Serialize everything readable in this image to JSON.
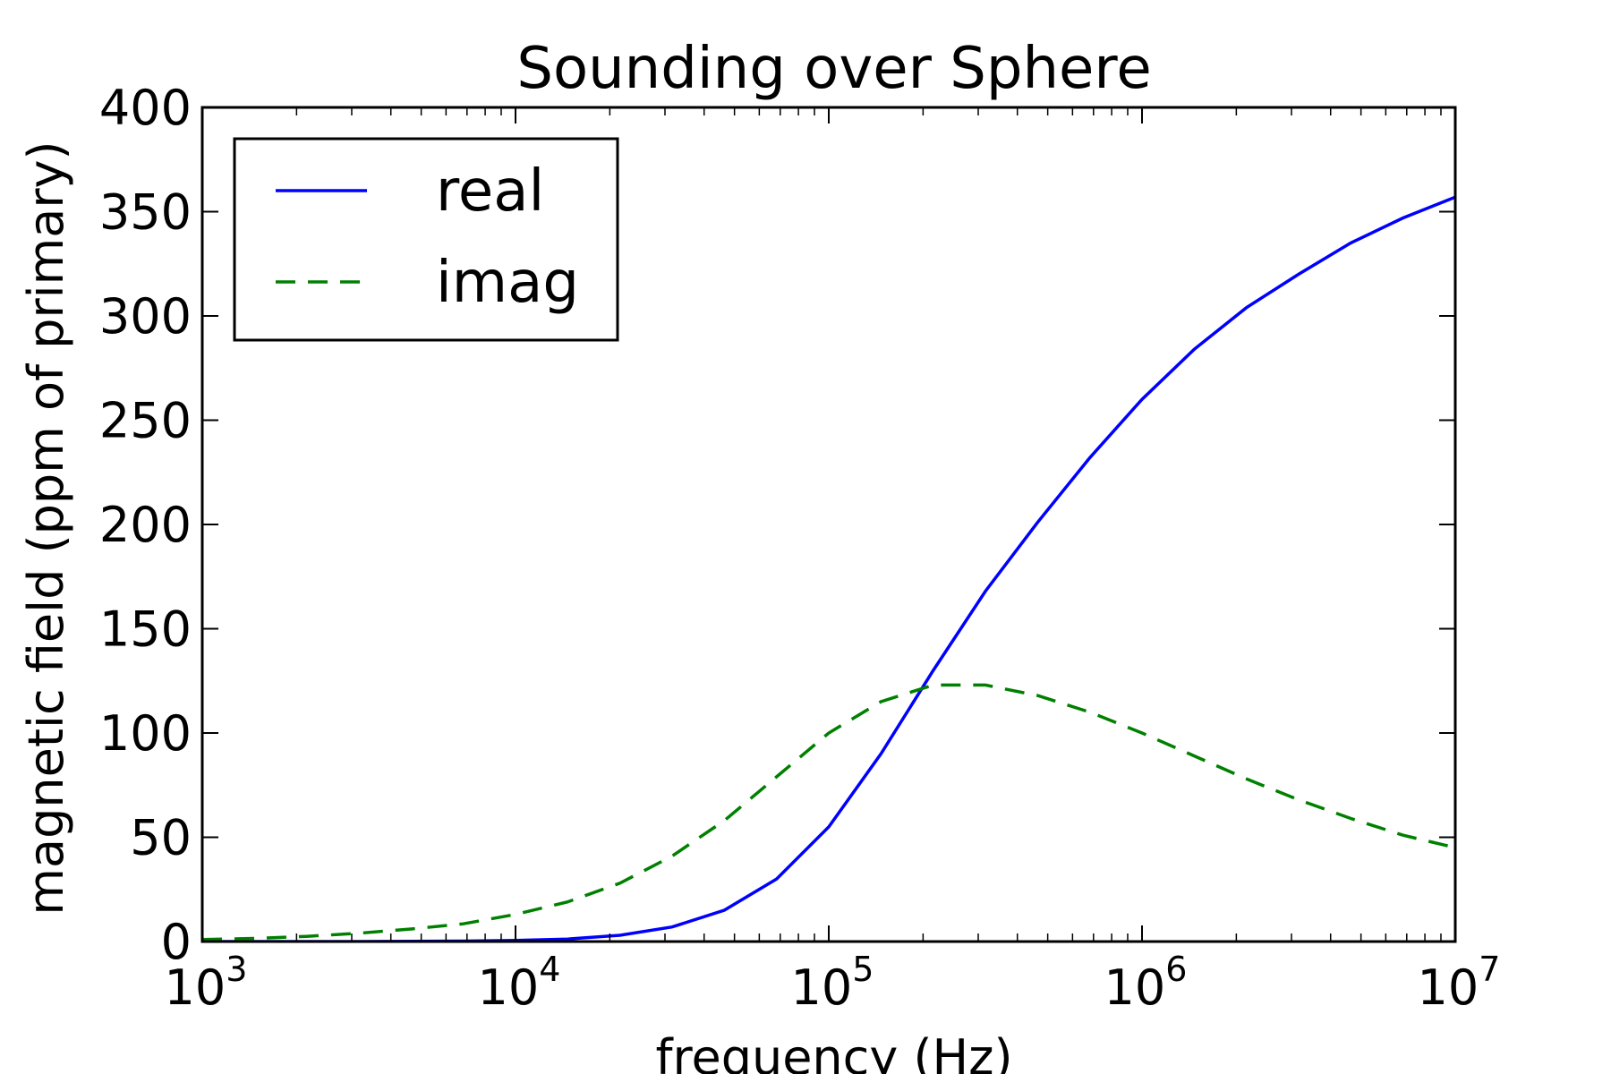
{
  "chart_data": {
    "type": "line",
    "title": "Sounding over Sphere",
    "xlabel": "frequency (Hz)",
    "ylabel": "magnetic field (ppm of primary)",
    "xscale": "log",
    "xlim": [
      1000,
      10000000
    ],
    "ylim": [
      0,
      400
    ],
    "xticks": [
      {
        "base": "10",
        "exp": "3",
        "value": 1000
      },
      {
        "base": "10",
        "exp": "4",
        "value": 10000
      },
      {
        "base": "10",
        "exp": "5",
        "value": 100000
      },
      {
        "base": "10",
        "exp": "6",
        "value": 1000000
      },
      {
        "base": "10",
        "exp": "7",
        "value": 10000000
      }
    ],
    "yticks": [
      {
        "label": "0",
        "value": 0
      },
      {
        "label": "50",
        "value": 50
      },
      {
        "label": "100",
        "value": 100
      },
      {
        "label": "150",
        "value": 150
      },
      {
        "label": "200",
        "value": 200
      },
      {
        "label": "250",
        "value": 250
      },
      {
        "label": "300",
        "value": 300
      },
      {
        "label": "350",
        "value": 350
      },
      {
        "label": "400",
        "value": 400
      }
    ],
    "grid": false,
    "legend_position": "top-left",
    "series": [
      {
        "name": "real",
        "color": "#0000ff",
        "style": "solid",
        "x": [
          1000,
          1468,
          2154,
          3162,
          4642,
          6813,
          10000,
          14678,
          21544,
          31623,
          46416,
          68129,
          100000,
          146780,
          215440,
          316230,
          464160,
          681290,
          1000000,
          1467800,
          2154400,
          3162300,
          4641600,
          6812900,
          10000000
        ],
        "y": [
          0,
          0,
          0,
          0,
          0.1,
          0.2,
          0.5,
          1.2,
          3,
          7,
          15,
          30,
          55,
          90,
          130,
          168,
          201,
          232,
          260,
          284,
          304,
          320,
          335,
          347,
          357
        ]
      },
      {
        "name": "imag",
        "color": "#008000",
        "style": "dashed",
        "x": [
          1000,
          1468,
          2154,
          3162,
          4642,
          6813,
          10000,
          14678,
          21544,
          31623,
          46416,
          68129,
          100000,
          146780,
          215440,
          316230,
          464160,
          681290,
          1000000,
          1467800,
          2154400,
          3162300,
          4641600,
          6812900,
          10000000
        ],
        "y": [
          1,
          1.5,
          2.5,
          4,
          6,
          8.5,
          13,
          19,
          28,
          41,
          58,
          79,
          100,
          115,
          123,
          123,
          118,
          110,
          100,
          89,
          78,
          68,
          59,
          51,
          45
        ]
      }
    ]
  }
}
